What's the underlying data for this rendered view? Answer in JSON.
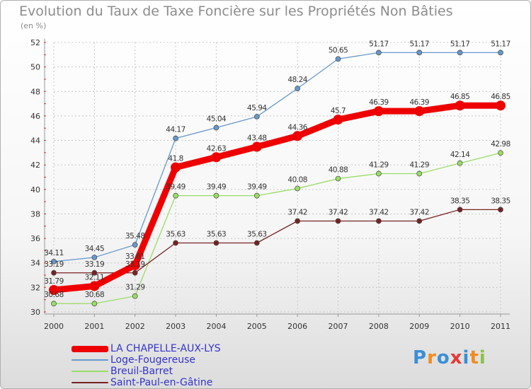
{
  "title": "Evolution du Taux de Taxe Foncière sur les Propriétés Non Bâties",
  "unit_label": "(en %)",
  "logo": {
    "letters": [
      "P",
      "r",
      "o",
      "x",
      "i",
      "t",
      "i"
    ],
    "colors": [
      "#3b8fd6",
      "#f28c1e",
      "#3b8fd6",
      "#e53935",
      "#3b8fd6",
      "#f28c1e",
      "#8bc34a"
    ]
  },
  "chart_data": {
    "type": "line",
    "title": "Evolution du Taux de Taxe Foncière sur les Propriétés Non Bâties",
    "ylabel": "(en %)",
    "xlabel": "",
    "x": [
      "2000",
      "2001",
      "2002",
      "2003",
      "2004",
      "2005",
      "2006",
      "2007",
      "2008",
      "2009",
      "2010",
      "2011"
    ],
    "ylim": [
      30,
      52
    ],
    "yticks": [
      "30",
      "32",
      "34",
      "36",
      "38",
      "40",
      "42",
      "44",
      "46",
      "48",
      "50",
      "52"
    ],
    "grid": true,
    "legend_position": "bottom-left",
    "series": [
      {
        "name": "LA CHAPELLE-AUX-LYS",
        "color": "#ee0000",
        "emphasis": true,
        "values": [
          31.79,
          32.11,
          33.81,
          41.8,
          42.63,
          43.48,
          44.36,
          45.7,
          46.39,
          46.39,
          46.85,
          46.85
        ],
        "labels": [
          "31.79",
          "32.11",
          "33.81",
          "41.8",
          "42.63",
          "43.48",
          "44.36",
          "45.7",
          "46.39",
          "46.39",
          "46.85",
          "46.85"
        ]
      },
      {
        "name": "Loge-Fougereuse",
        "color": "#6699cc",
        "values": [
          34.11,
          34.45,
          35.48,
          44.17,
          45.04,
          45.94,
          48.24,
          50.65,
          51.17,
          51.17,
          51.17,
          51.17
        ],
        "labels": [
          "34.11",
          "34.45",
          "35.48",
          "44.17",
          "45.04",
          "45.94",
          "48.24",
          "50.65",
          "51.17",
          "51.17",
          "51.17",
          "51.17"
        ]
      },
      {
        "name": "Breuil-Barret",
        "color": "#99dd66",
        "values": [
          30.68,
          30.68,
          31.29,
          39.49,
          39.49,
          39.49,
          40.08,
          40.88,
          41.29,
          41.29,
          42.14,
          42.98
        ],
        "labels": [
          "30.68",
          "30.68",
          "31.29",
          "39.49",
          "39.49",
          "39.49",
          "40.08",
          "40.88",
          "41.29",
          "41.29",
          "42.14",
          "42.98"
        ]
      },
      {
        "name": "Saint-Paul-en-Gâtine",
        "color": "#772222",
        "values": [
          33.19,
          33.19,
          33.19,
          35.63,
          35.63,
          35.63,
          37.42,
          37.42,
          37.42,
          37.42,
          38.35,
          38.35
        ],
        "labels": [
          "33.19",
          "33.19",
          "33.19",
          "35.63",
          "35.63",
          "35.63",
          "37.42",
          "37.42",
          "37.42",
          "37.42",
          "38.35",
          "38.35"
        ]
      }
    ]
  }
}
